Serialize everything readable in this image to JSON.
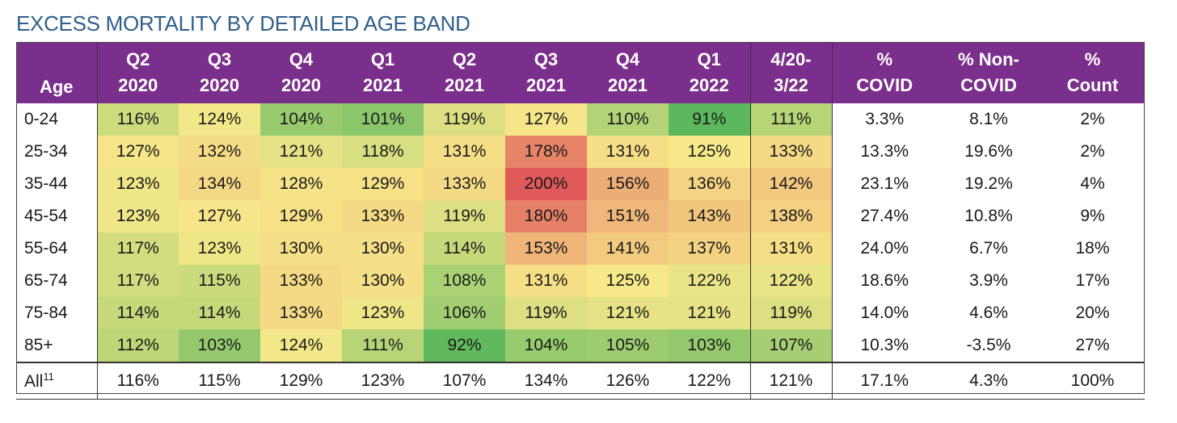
{
  "title": "EXCESS MORTALITY BY DETAILED AGE BAND",
  "chart_data": {
    "type": "heatmap",
    "title": "EXCESS MORTALITY BY DETAILED AGE BAND",
    "columns": [
      {
        "l1": "",
        "l2": "Age"
      },
      {
        "l1": "Q2",
        "l2": "2020"
      },
      {
        "l1": "Q3",
        "l2": "2020"
      },
      {
        "l1": "Q4",
        "l2": "2020"
      },
      {
        "l1": "Q1",
        "l2": "2021"
      },
      {
        "l1": "Q2",
        "l2": "2021"
      },
      {
        "l1": "Q3",
        "l2": "2021"
      },
      {
        "l1": "Q4",
        "l2": "2021"
      },
      {
        "l1": "Q1",
        "l2": "2022"
      },
      {
        "l1": "4/20-",
        "l2": "3/22"
      },
      {
        "l1": "%",
        "l2": "COVID"
      },
      {
        "l1": "% Non-",
        "l2": "COVID"
      },
      {
        "l1": "%",
        "l2": "Count"
      }
    ],
    "rows": [
      {
        "age": "0-24",
        "values": [
          116,
          124,
          104,
          101,
          119,
          127,
          110,
          91,
          111
        ],
        "covid": "3.3%",
        "noncovid": "8.1%",
        "count": "2%"
      },
      {
        "age": "25-34",
        "values": [
          127,
          132,
          121,
          118,
          131,
          178,
          131,
          125,
          133
        ],
        "covid": "13.3%",
        "noncovid": "19.6%",
        "count": "2%"
      },
      {
        "age": "35-44",
        "values": [
          123,
          134,
          128,
          129,
          133,
          200,
          156,
          136,
          142
        ],
        "covid": "23.1%",
        "noncovid": "19.2%",
        "count": "4%"
      },
      {
        "age": "45-54",
        "values": [
          123,
          127,
          129,
          133,
          119,
          180,
          151,
          143,
          138
        ],
        "covid": "27.4%",
        "noncovid": "10.8%",
        "count": "9%"
      },
      {
        "age": "55-64",
        "values": [
          117,
          123,
          130,
          130,
          114,
          153,
          141,
          137,
          131
        ],
        "covid": "24.0%",
        "noncovid": "6.7%",
        "count": "18%"
      },
      {
        "age": "65-74",
        "values": [
          117,
          115,
          133,
          130,
          108,
          131,
          125,
          122,
          122
        ],
        "covid": "18.6%",
        "noncovid": "3.9%",
        "count": "17%"
      },
      {
        "age": "75-84",
        "values": [
          114,
          114,
          133,
          123,
          106,
          119,
          121,
          121,
          119
        ],
        "covid": "14.0%",
        "noncovid": "4.6%",
        "count": "20%"
      },
      {
        "age": "85+",
        "values": [
          112,
          103,
          124,
          111,
          92,
          104,
          105,
          103,
          107
        ],
        "covid": "10.3%",
        "noncovid": "-3.5%",
        "count": "27%"
      }
    ],
    "total_row": {
      "age": "All",
      "age_sup": "11",
      "values": [
        116,
        115,
        129,
        123,
        107,
        134,
        126,
        122,
        121
      ],
      "covid": "17.1%",
      "noncovid": "4.3%",
      "count": "100%"
    },
    "value_suffix": "%",
    "color_scale": {
      "low": "#5cb85c",
      "mid": "#f7e98a",
      "high": "#e05a5a"
    }
  },
  "colors": {
    "header_bg": "#7b2f8c",
    "header_text": "#ffffff",
    "title_text": "#2f5f8a"
  }
}
